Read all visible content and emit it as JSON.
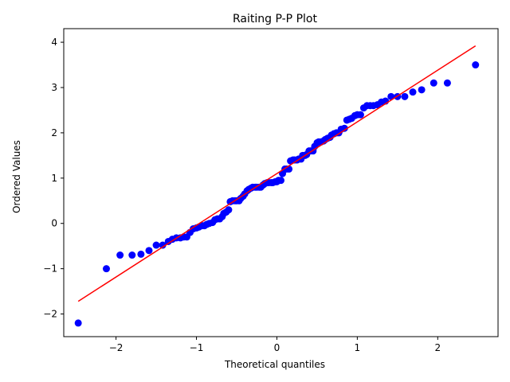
{
  "chart_data": {
    "type": "scatter",
    "title": "Raiting P-P Plot",
    "xlabel": "Theoretical quantiles",
    "ylabel": "Ordered Values",
    "xlim": [
      -2.65,
      2.75
    ],
    "ylim": [
      -2.5,
      4.3
    ],
    "x_ticks": [
      -2,
      -1,
      0,
      1,
      2
    ],
    "x_tick_labels": [
      "−2",
      "−1",
      "0",
      "1",
      "2"
    ],
    "y_ticks": [
      -2,
      -1,
      0,
      1,
      2,
      3,
      4
    ],
    "y_tick_labels": [
      "−2",
      "−1",
      "0",
      "1",
      "2",
      "3",
      "4"
    ],
    "grid": false,
    "colors": {
      "points": "#0000ff",
      "fit_line": "#ff0000",
      "axes": "#000000"
    },
    "fit_line": {
      "x": [
        -2.47,
        2.47
      ],
      "y": [
        -1.72,
        3.92
      ]
    },
    "series": [
      {
        "points": [
          [
            -2.47,
            -2.2
          ],
          [
            -2.12,
            -1.0
          ],
          [
            -1.95,
            -0.7
          ],
          [
            -1.8,
            -0.7
          ],
          [
            -1.69,
            -0.68
          ],
          [
            -1.59,
            -0.6
          ],
          [
            -1.5,
            -0.48
          ],
          [
            -1.42,
            -0.48
          ],
          [
            -1.35,
            -0.4
          ],
          [
            -1.3,
            -0.35
          ],
          [
            -1.25,
            -0.32
          ],
          [
            -1.2,
            -0.32
          ],
          [
            -1.16,
            -0.3
          ],
          [
            -1.12,
            -0.3
          ],
          [
            -1.08,
            -0.2
          ],
          [
            -1.04,
            -0.12
          ],
          [
            -1.0,
            -0.1
          ],
          [
            -0.97,
            -0.08
          ],
          [
            -0.93,
            -0.05
          ],
          [
            -0.9,
            -0.05
          ],
          [
            -0.87,
            -0.02
          ],
          [
            -0.84,
            0.0
          ],
          [
            -0.8,
            0.02
          ],
          [
            -0.77,
            0.08
          ],
          [
            -0.74,
            0.1
          ],
          [
            -0.71,
            0.1
          ],
          [
            -0.68,
            0.15
          ],
          [
            -0.66,
            0.22
          ],
          [
            -0.63,
            0.25
          ],
          [
            -0.6,
            0.3
          ],
          [
            -0.58,
            0.48
          ],
          [
            -0.55,
            0.5
          ],
          [
            -0.52,
            0.5
          ],
          [
            -0.5,
            0.5
          ],
          [
            -0.47,
            0.5
          ],
          [
            -0.45,
            0.55
          ],
          [
            -0.42,
            0.6
          ],
          [
            -0.4,
            0.65
          ],
          [
            -0.37,
            0.72
          ],
          [
            -0.35,
            0.75
          ],
          [
            -0.32,
            0.78
          ],
          [
            -0.3,
            0.8
          ],
          [
            -0.27,
            0.8
          ],
          [
            -0.25,
            0.8
          ],
          [
            -0.22,
            0.8
          ],
          [
            -0.2,
            0.8
          ],
          [
            -0.17,
            0.85
          ],
          [
            -0.15,
            0.88
          ],
          [
            -0.12,
            0.9
          ],
          [
            -0.1,
            0.9
          ],
          [
            -0.07,
            0.9
          ],
          [
            -0.05,
            0.9
          ],
          [
            -0.02,
            0.92
          ],
          [
            0.0,
            0.92
          ],
          [
            0.02,
            0.95
          ],
          [
            0.05,
            0.95
          ],
          [
            0.07,
            1.1
          ],
          [
            0.1,
            1.2
          ],
          [
            0.12,
            1.2
          ],
          [
            0.15,
            1.2
          ],
          [
            0.17,
            1.38
          ],
          [
            0.2,
            1.4
          ],
          [
            0.22,
            1.4
          ],
          [
            0.25,
            1.4
          ],
          [
            0.27,
            1.42
          ],
          [
            0.3,
            1.42
          ],
          [
            0.32,
            1.5
          ],
          [
            0.35,
            1.5
          ],
          [
            0.37,
            1.52
          ],
          [
            0.4,
            1.6
          ],
          [
            0.42,
            1.6
          ],
          [
            0.45,
            1.6
          ],
          [
            0.47,
            1.7
          ],
          [
            0.5,
            1.78
          ],
          [
            0.52,
            1.8
          ],
          [
            0.55,
            1.8
          ],
          [
            0.58,
            1.82
          ],
          [
            0.6,
            1.85
          ],
          [
            0.63,
            1.88
          ],
          [
            0.66,
            1.9
          ],
          [
            0.68,
            1.95
          ],
          [
            0.71,
            1.98
          ],
          [
            0.74,
            2.0
          ],
          [
            0.77,
            2.0
          ],
          [
            0.8,
            2.08
          ],
          [
            0.84,
            2.1
          ],
          [
            0.87,
            2.28
          ],
          [
            0.9,
            2.3
          ],
          [
            0.93,
            2.32
          ],
          [
            0.97,
            2.38
          ],
          [
            1.0,
            2.4
          ],
          [
            1.04,
            2.4
          ],
          [
            1.08,
            2.55
          ],
          [
            1.12,
            2.6
          ],
          [
            1.16,
            2.6
          ],
          [
            1.2,
            2.6
          ],
          [
            1.25,
            2.62
          ],
          [
            1.3,
            2.68
          ],
          [
            1.35,
            2.7
          ],
          [
            1.42,
            2.8
          ],
          [
            1.5,
            2.8
          ],
          [
            1.59,
            2.8
          ],
          [
            1.69,
            2.9
          ],
          [
            1.8,
            2.95
          ],
          [
            1.95,
            3.1
          ],
          [
            2.12,
            3.1
          ],
          [
            2.47,
            3.5
          ]
        ]
      }
    ]
  }
}
